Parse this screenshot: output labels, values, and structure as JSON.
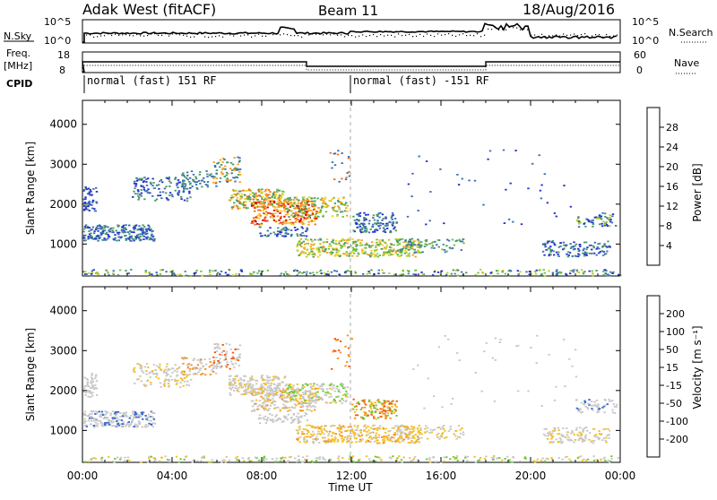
{
  "header": {
    "station": "Adak West (fitACF)",
    "beam": "Beam 11",
    "date": "18/Aug/2016"
  },
  "strips": {
    "nsky_label": "N.Sky",
    "nsky_ticks": [
      "10^5",
      "10^0"
    ],
    "nsky_right_ticks": [
      "10^5",
      "10^0"
    ],
    "nsearch_label": "N.Search",
    "freq_label": "Freq.",
    "freq_unit": "[MHz]",
    "freq_ticks": [
      "18",
      "8"
    ],
    "nave_ticks": [
      "60",
      "0"
    ],
    "nave_label": "Nave",
    "cpid_label": "CPID",
    "cpid_segments": [
      {
        "label": "normal (fast) 151 RF",
        "start": 0
      },
      {
        "label": "normal (fast) -151 RF",
        "start": 12
      }
    ],
    "freq_steps": [
      {
        "start": 0,
        "end": 10,
        "value": 13.5
      },
      {
        "start": 10,
        "end": 18,
        "value": 11
      },
      {
        "start": 18,
        "end": 24,
        "value": 13.5
      }
    ]
  },
  "chart_data": [
    {
      "type": "heatmap",
      "name": "power",
      "ylabel": "Slant Range [km]",
      "yticks": [
        "4000",
        "3000",
        "2000",
        "1000"
      ],
      "ylim": [
        200,
        4600
      ],
      "xlim": [
        0,
        24
      ],
      "colorbar_label": "Power [dB]",
      "colorbar_ticks": [
        "28",
        "24",
        "20",
        "16",
        "12",
        "8",
        "4"
      ],
      "colorbar_colors": [
        "#0000ee",
        "#2233cc",
        "#3b6fb0",
        "#4a9a6a",
        "#6ec03c",
        "#b8d02a",
        "#f5cf20",
        "#f5a020",
        "#f26e1e",
        "#e8321e",
        "#d40000"
      ]
    },
    {
      "type": "heatmap",
      "name": "velocity",
      "ylabel": "Slant Range [km]",
      "yticks": [
        "4000",
        "3000",
        "2000",
        "1000"
      ],
      "ylim": [
        200,
        4600
      ],
      "xlim": [
        0,
        24
      ],
      "colorbar_label": "Velocity [m s⁻¹]",
      "colorbar_ticks": [
        "200",
        "100",
        "50",
        "15",
        "-15",
        "-50",
        "-100",
        "-200"
      ],
      "colorbar_colors": [
        "#2233bb",
        "#3366cc",
        "#3a8a6a",
        "#66cc33",
        "#c8c8c8",
        "#f5c020",
        "#f59020",
        "#f25a10",
        "#e02010"
      ]
    }
  ],
  "xaxis": {
    "label": "Time UT",
    "ticks": [
      "00:00",
      "04:00",
      "08:00",
      "12:00",
      "16:00",
      "20:00",
      "00:00"
    ]
  }
}
